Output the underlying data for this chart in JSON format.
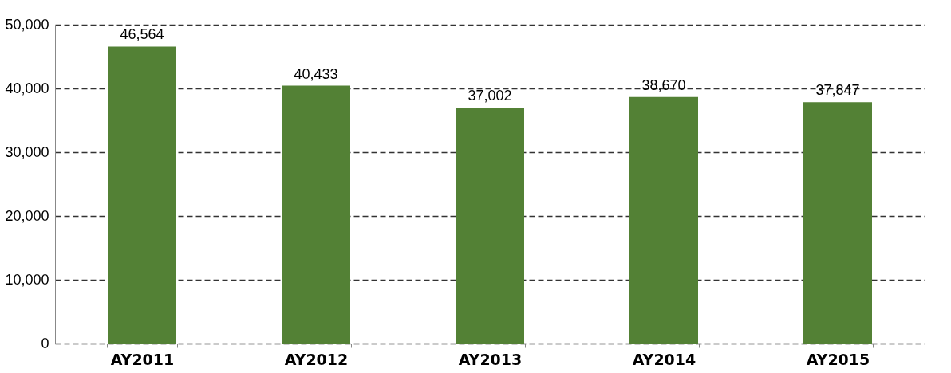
{
  "chart_data": {
    "type": "bar",
    "categories": [
      "AY2011",
      "AY2012",
      "AY2013",
      "AY2014",
      "AY2015"
    ],
    "values": [
      46564,
      40433,
      37002,
      38670,
      37847
    ],
    "value_labels": [
      "46,564",
      "40,433",
      "37,002",
      "38,670",
      "37,847"
    ],
    "color": "#538135",
    "ylim": [
      0,
      50000
    ],
    "yticks": [
      0,
      {
        "value": 10000,
        "label": "10,000"
      },
      {
        "value": 20000,
        "label": "20,000"
      },
      {
        "value": 30000,
        "label": "30,000"
      },
      {
        "value": 40000,
        "label": "40,000"
      },
      {
        "value": 50000,
        "label": "50,000"
      }
    ],
    "grid": "y"
  }
}
